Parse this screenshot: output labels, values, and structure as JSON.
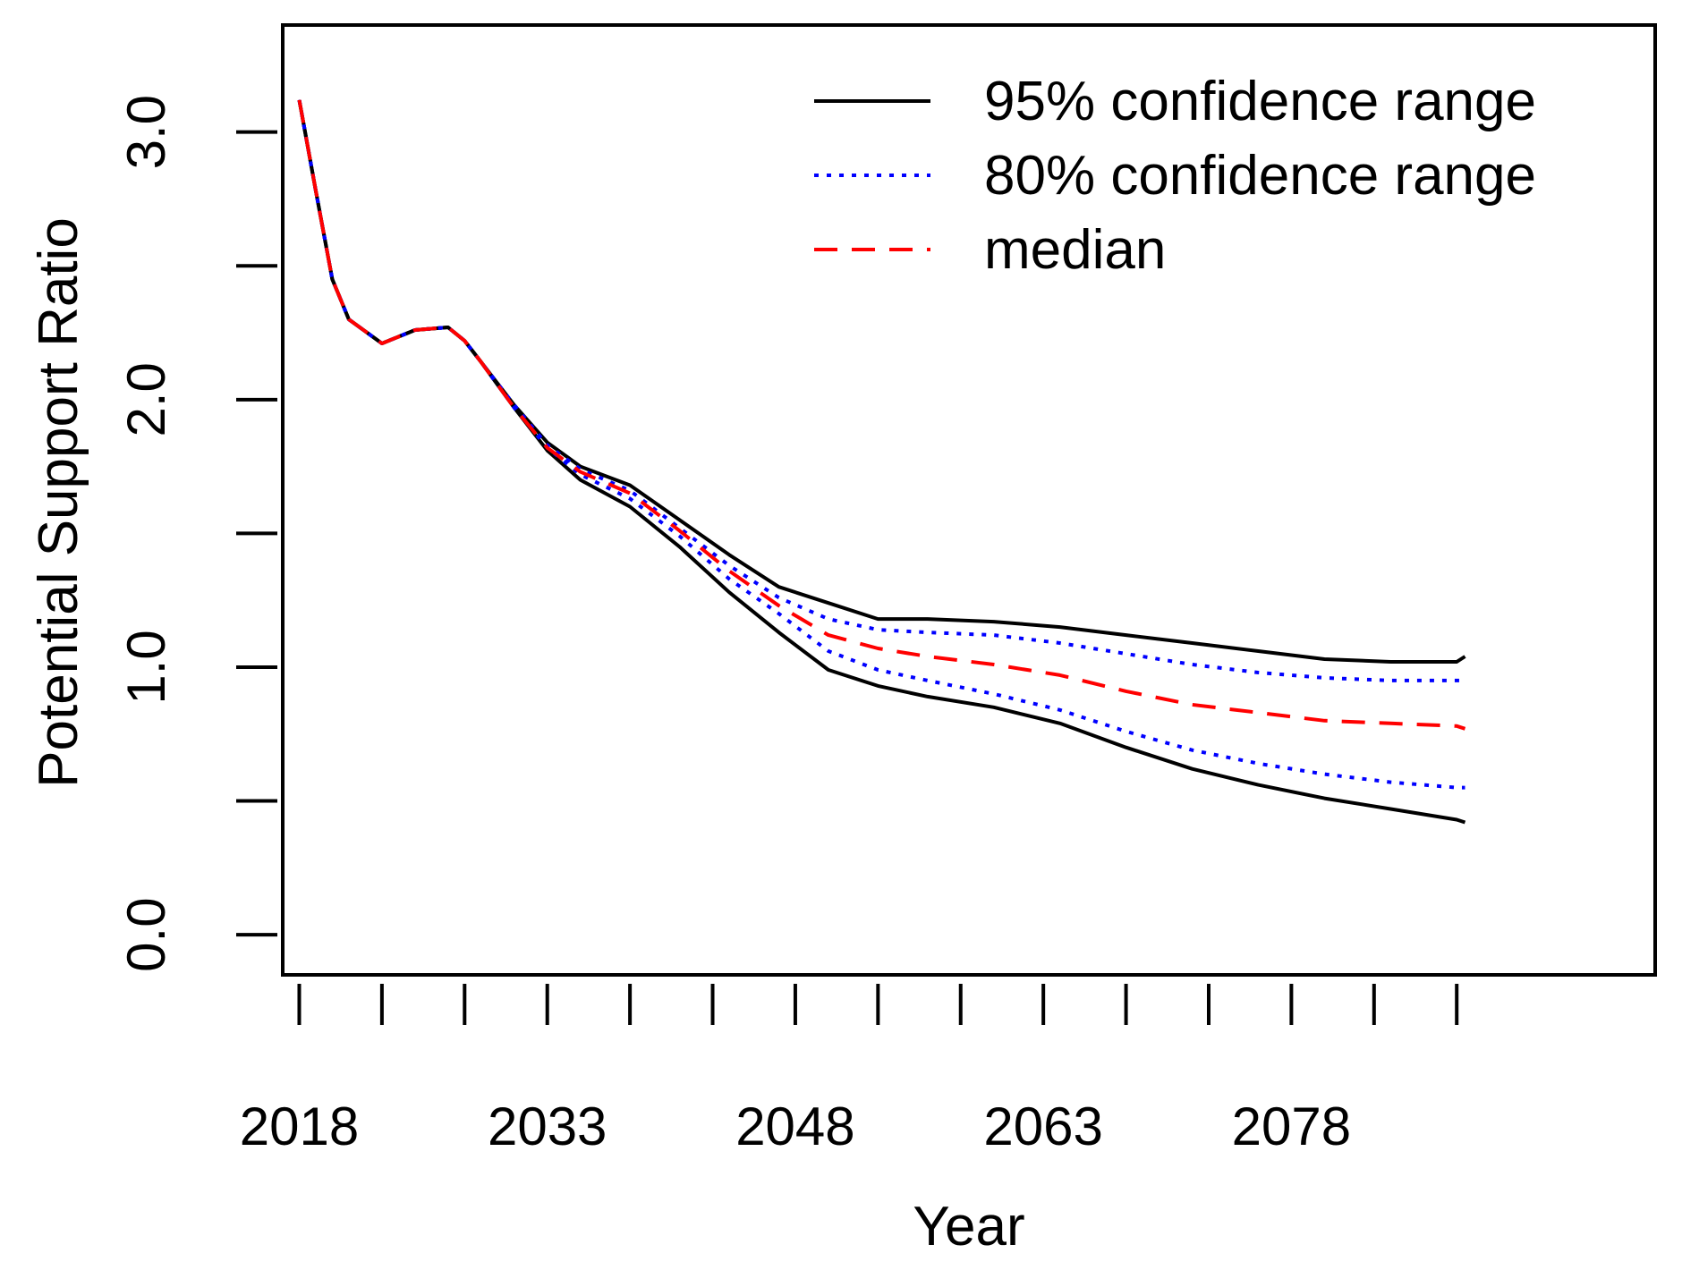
{
  "chart_data": {
    "type": "line",
    "title": "",
    "xlabel": "Year",
    "ylabel": "Potential Support Ratio",
    "xlim": [
      2017,
      2100
    ],
    "ylim": [
      -0.15,
      3.4
    ],
    "x_ticks": [
      2018,
      2023,
      2028,
      2033,
      2038,
      2043,
      2048,
      2053,
      2058,
      2063,
      2068,
      2073,
      2078,
      2083,
      2088
    ],
    "x_tick_labels": [
      "2018",
      "2033",
      "2048",
      "2063",
      "2078"
    ],
    "x_tick_label_years": [
      2018,
      2033,
      2048,
      2063,
      2078
    ],
    "y_ticks": [
      0.0,
      0.5,
      1.0,
      1.5,
      2.0,
      2.5,
      3.0
    ],
    "y_tick_labels": [
      "0.0",
      "1.0",
      "2.0",
      "3.0"
    ],
    "y_tick_label_values": [
      0.0,
      1.0,
      2.0,
      3.0
    ],
    "x": [
      2018,
      2019,
      2020,
      2021,
      2023,
      2025,
      2027,
      2028,
      2029,
      2031,
      2033,
      2035,
      2038,
      2041,
      2044,
      2047,
      2050,
      2053,
      2056,
      2060,
      2064,
      2068,
      2072,
      2076,
      2080,
      2084,
      2088,
      2088.5
    ],
    "series": [
      {
        "name": "95% confidence range",
        "style": "solid",
        "color": "#000000",
        "values_upper": [
          3.12,
          2.78,
          2.45,
          2.3,
          2.21,
          2.26,
          2.27,
          2.22,
          2.14,
          1.98,
          1.84,
          1.75,
          1.68,
          1.55,
          1.42,
          1.3,
          1.24,
          1.18,
          1.18,
          1.17,
          1.15,
          1.12,
          1.09,
          1.06,
          1.03,
          1.02,
          1.02,
          1.04
        ],
        "values_lower": [
          3.12,
          2.78,
          2.45,
          2.3,
          2.21,
          2.26,
          2.27,
          2.22,
          2.14,
          1.97,
          1.81,
          1.7,
          1.6,
          1.45,
          1.28,
          1.13,
          0.99,
          0.93,
          0.89,
          0.85,
          0.79,
          0.7,
          0.62,
          0.56,
          0.51,
          0.47,
          0.43,
          0.42
        ]
      },
      {
        "name": "80% confidence range",
        "style": "dotted",
        "color": "#0000ff",
        "values_upper": [
          3.12,
          2.78,
          2.45,
          2.3,
          2.21,
          2.26,
          2.27,
          2.22,
          2.14,
          1.98,
          1.83,
          1.74,
          1.66,
          1.52,
          1.38,
          1.26,
          1.18,
          1.14,
          1.13,
          1.12,
          1.09,
          1.05,
          1.01,
          0.98,
          0.96,
          0.95,
          0.95,
          0.95
        ],
        "values_lower": [
          3.12,
          2.78,
          2.45,
          2.3,
          2.21,
          2.26,
          2.27,
          2.22,
          2.14,
          1.97,
          1.82,
          1.72,
          1.63,
          1.49,
          1.33,
          1.2,
          1.06,
          0.99,
          0.95,
          0.9,
          0.84,
          0.76,
          0.69,
          0.64,
          0.6,
          0.57,
          0.55,
          0.55
        ]
      },
      {
        "name": "median",
        "style": "dashed",
        "color": "#ff0000",
        "values": [
          3.12,
          2.78,
          2.45,
          2.3,
          2.21,
          2.26,
          2.27,
          2.22,
          2.14,
          1.97,
          1.82,
          1.73,
          1.65,
          1.51,
          1.36,
          1.23,
          1.12,
          1.07,
          1.04,
          1.01,
          0.97,
          0.91,
          0.86,
          0.83,
          0.8,
          0.79,
          0.78,
          0.77
        ]
      }
    ],
    "legend": {
      "position": "top-right",
      "entries": [
        "95% confidence range",
        "80% confidence range",
        "median"
      ]
    },
    "grid": false
  }
}
